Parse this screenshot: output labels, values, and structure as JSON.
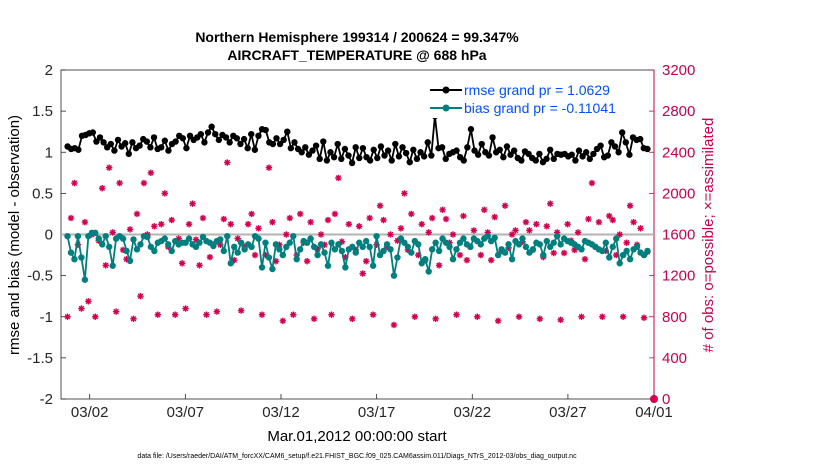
{
  "chart_data": {
    "type": "line",
    "title_line1": "Northern Hemisphere 199314 / 200624 = 99.347%",
    "title_line2": "AIRCRAFT_TEMPERATURE @ 688 hPa",
    "ylabel_left": "rmse and bias (model - observation)",
    "ylabel_right": "# of obs: o=possible; ×=assimilated",
    "xlabel": "Mar.01,2012 00:00:00 start",
    "footnote": "data file: /Users/raeder/DAI/ATM_forcXX/CAM6_setup/f.e21.FHIST_BGC.f09_025.CAM6assim.011/Diags_NTrS_2012-03/obs_diag_output.nc",
    "ylim_left": [
      -2,
      2
    ],
    "ylim_right": [
      0,
      3200
    ],
    "xlim": [
      0.5,
      31.5
    ],
    "left_ticks": [
      "-2",
      "-1.5",
      "-1",
      "-0.5",
      "0",
      "0.5",
      "1",
      "1.5",
      "2"
    ],
    "right_ticks": [
      "0",
      "400",
      "800",
      "1200",
      "1600",
      "2000",
      "2400",
      "2800",
      "3200"
    ],
    "x_tick_labels": [
      "03/02",
      "03/07",
      "03/12",
      "03/17",
      "03/22",
      "03/27",
      "04/01"
    ],
    "x_tick_values": [
      2,
      7,
      12,
      17,
      22,
      27,
      32
    ],
    "legend": [
      "rmse grand pr = 1.0629",
      "bias grand pr = -0.11041"
    ],
    "colors": {
      "rmse": "#000000",
      "bias": "#007f7f",
      "obs": "#d2004e",
      "zero": "#b3b3b3"
    },
    "rmse": [
      1.07,
      1.04,
      1.05,
      1.03,
      1.2,
      1.21,
      1.23,
      1.24,
      1.13,
      1.18,
      1.12,
      1.06,
      1.1,
      1.02,
      1.15,
      1.07,
      1.11,
      0.98,
      1.12,
      1.05,
      1.08,
      1.16,
      1.13,
      1.06,
      1.18,
      1.04,
      1.06,
      1.14,
      1.02,
      1.1,
      1.13,
      1.2,
      1.17,
      1.05,
      1.2,
      1.15,
      1.18,
      1.22,
      1.12,
      1.24,
      1.31,
      1.22,
      1.15,
      1.21,
      1.18,
      1.12,
      1.2,
      1.17,
      1.1,
      1.16,
      1.05,
      1.22,
      1.03,
      1.2,
      1.28,
      1.27,
      1.12,
      1.1,
      1.17,
      1.1,
      1.15,
      1.25,
      1.05,
      1.12,
      1.04,
      1.0,
      1.06,
      0.97,
      1.02,
      1.08,
      0.92,
      1.13,
      0.9,
      1.0,
      0.94,
      1.1,
      0.92,
      1.04,
      0.96,
      0.87,
      1.06,
      0.93,
      1.05,
      0.94,
      0.9,
      1.03,
      0.93,
      1.07,
      0.96,
      1.02,
      0.9,
      1.1,
      0.95,
      1.06,
      0.99,
      0.88,
      1.03,
      0.92,
      1.0,
      0.95,
      1.12,
      0.96,
      1.44,
      1.05,
      1.06,
      0.92,
      0.98,
      1.0,
      1.02,
      0.94,
      0.9,
      1.06,
      1.28,
      1.02,
      0.97,
      1.1,
      1.0,
      0.96,
      1.18,
      1.0,
      1.03,
      0.94,
      1.07,
      0.97,
      1.02,
      0.93,
      0.9,
      1.01,
      0.98,
      0.93,
      0.9,
      0.98,
      0.88,
      0.92,
      1.03,
      0.92,
      0.98,
      0.97,
      0.98,
      0.95,
      0.97,
      0.9,
      1.02,
      0.95,
      1.0,
      0.92,
      0.98,
      1.04,
      1.08,
      0.94,
      0.96,
      1.12,
      1.07,
      1.0,
      1.24,
      1.12,
      0.97,
      1.18,
      1.15,
      1.16,
      1.05,
      1.04
    ],
    "bias": [
      -0.02,
      -0.22,
      -0.3,
      -0.02,
      -0.28,
      -0.55,
      -0.02,
      0.02,
      0.02,
      -0.05,
      -0.12,
      -0.02,
      -0.15,
      -0.38,
      -0.05,
      -0.02,
      -0.05,
      -0.2,
      -0.32,
      -0.06,
      -0.18,
      -0.12,
      -0.02,
      -0.03,
      -0.15,
      -0.2,
      -0.1,
      -0.08,
      -0.05,
      -0.12,
      -0.2,
      -0.08,
      -0.12,
      -0.1,
      -0.1,
      -0.05,
      -0.12,
      -0.15,
      -0.1,
      -0.03,
      -0.08,
      -0.1,
      -0.14,
      -0.08,
      -0.06,
      -0.2,
      -0.02,
      -0.35,
      -0.15,
      -0.22,
      -0.1,
      -0.18,
      -0.12,
      -0.15,
      -0.02,
      -0.05,
      -0.4,
      -0.1,
      -0.28,
      -0.42,
      -0.12,
      -0.18,
      -0.25,
      -0.15,
      -0.1,
      -0.02,
      -0.3,
      -0.18,
      -0.08,
      -0.1,
      -0.05,
      -0.15,
      -0.25,
      -0.12,
      -0.22,
      -0.38,
      -0.1,
      -0.18,
      -0.12,
      -0.2,
      -0.4,
      -0.18,
      -0.15,
      -0.22,
      -0.1,
      -0.15,
      -0.08,
      -0.15,
      -0.38,
      -0.02,
      -0.25,
      -0.2,
      -0.12,
      -0.18,
      -0.5,
      -0.28,
      -0.05,
      -0.1,
      -0.15,
      -0.22,
      -0.08,
      -0.12,
      -0.35,
      -0.3,
      -0.45,
      -0.18,
      -0.1,
      -0.2,
      -0.05,
      -0.1,
      -0.15,
      -0.3,
      -0.18,
      -0.1,
      -0.05,
      -0.12,
      -0.15,
      -0.05,
      -0.08,
      -0.12,
      -0.05,
      -0.02,
      -0.08,
      -0.04,
      -0.25,
      -0.18,
      -0.22,
      -0.12,
      -0.3,
      -0.08,
      -0.12,
      -0.05,
      -0.15,
      -0.22,
      -0.18,
      -0.1,
      -0.12,
      -0.25,
      -0.08,
      -0.15,
      -0.1,
      -0.02,
      -0.12,
      -0.05,
      -0.08,
      -0.1,
      -0.12,
      -0.15,
      -0.18,
      -0.08,
      -0.1,
      -0.12,
      -0.15,
      -0.18,
      -0.2,
      -0.1,
      -0.28,
      -0.15,
      -0.05,
      -0.35,
      -0.25,
      -0.2,
      -0.3,
      -0.18,
      -0.15,
      -0.22,
      -0.25,
      -0.2
    ],
    "obs_count": [
      800,
      1760,
      2100,
      1500,
      880,
      1720,
      950,
      1600,
      800,
      1540,
      2050,
      1300,
      2250,
      1620,
      850,
      2100,
      1450,
      1360,
      1650,
      780,
      1800,
      1000,
      2100,
      1600,
      2200,
      1680,
      820,
      1700,
      2000,
      1480,
      1740,
      820,
      1560,
      1320,
      880,
      1700,
      1900,
      1550,
      1300,
      1760,
      820,
      1380,
      1500,
      850,
      1500,
      1750,
      2300,
      1700,
      1350,
      1560,
      860,
      1480,
      1700,
      1800,
      1400,
      1660,
      820,
      1400,
      2250,
      1720,
      1340,
      1500,
      760,
      1600,
      1760,
      820,
      1400,
      1800,
      1520,
      1340,
      1720,
      780,
      1460,
      1600,
      1500,
      1740,
      820,
      1800,
      2150,
      1530,
      1380,
      1700,
      780,
      1450,
      1680,
      1220,
      1340,
      1760,
      820,
      1500,
      1880,
      1740,
      1480,
      1600,
      720,
      1540,
      1660,
      2000,
      1450,
      1800,
      800,
      1400,
      1700,
      1350,
      1620,
      1760,
      780,
      1300,
      1840,
      1750,
      1520,
      1600,
      820,
      1400,
      1780,
      1350,
      1480,
      1640,
      800,
      1400,
      1840,
      1620,
      1350,
      1770,
      760,
      1440,
      1880,
      1470,
      1600,
      1640,
      800,
      1530,
      1720,
      1640,
      1450,
      1700,
      780,
      1380,
      1680,
      1900,
      1420,
      1620,
      770,
      1420,
      1700,
      1540,
      1450,
      1620,
      800,
      1360,
      1750,
      2100,
      1480,
      1720,
      800,
      1440,
      1780,
      1740,
      1400,
      1600,
      800,
      1520,
      1880,
      1720,
      1500,
      1660,
      790,
      1430
    ]
  }
}
